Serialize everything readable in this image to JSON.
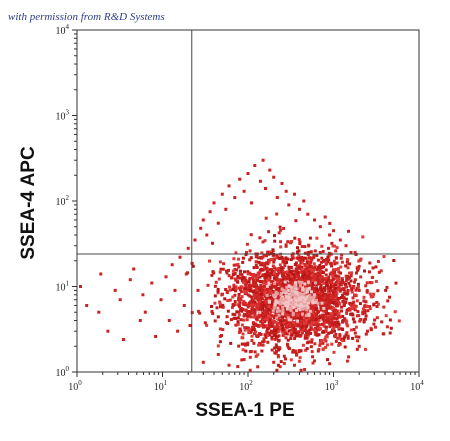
{
  "credit": "with permission from R&D Systems",
  "chart_data": {
    "type": "scatter",
    "title": "",
    "xlabel": "SSEA-1 PE",
    "ylabel": "SSEA-4 APC",
    "x_scale": "log",
    "y_scale": "log",
    "xlim": [
      1,
      10000
    ],
    "ylim": [
      1,
      10000
    ],
    "x_ticks": [
      {
        "base": "10",
        "exp": "0"
      },
      {
        "base": "10",
        "exp": "1"
      },
      {
        "base": "10",
        "exp": "2"
      },
      {
        "base": "10",
        "exp": "3"
      },
      {
        "base": "10",
        "exp": "4"
      }
    ],
    "y_ticks": [
      {
        "base": "10",
        "exp": "0"
      },
      {
        "base": "10",
        "exp": "1"
      },
      {
        "base": "10",
        "exp": "2"
      },
      {
        "base": "10",
        "exp": "3"
      },
      {
        "base": "10",
        "exp": "4"
      }
    ],
    "gates": {
      "x": 22,
      "y": 24
    },
    "grid": false,
    "colors": {
      "points": "#cc2222",
      "dense_core": "#e8a0a0",
      "axes": "#333333",
      "gates": "#444444"
    },
    "population": {
      "center_x": 350,
      "center_y": 7,
      "spread_x_decades": 0.35,
      "spread_y_decades": 0.28
    },
    "tail_points": [
      [
        1.1,
        10
      ],
      [
        1.3,
        6
      ],
      [
        1.8,
        5
      ],
      [
        1.9,
        14
      ],
      [
        2.3,
        3
      ],
      [
        2.8,
        9
      ],
      [
        3.2,
        7
      ],
      [
        3.5,
        2.4
      ],
      [
        4.2,
        12
      ],
      [
        4.6,
        16
      ],
      [
        5.5,
        4
      ],
      [
        5.9,
        8
      ],
      [
        6.3,
        5
      ],
      [
        7.5,
        11
      ],
      [
        8.3,
        2.6
      ],
      [
        9.6,
        7
      ],
      [
        11,
        13
      ],
      [
        12,
        4
      ],
      [
        13,
        18
      ],
      [
        14,
        9
      ],
      [
        15,
        3
      ],
      [
        16,
        22
      ],
      [
        18,
        6
      ],
      [
        19,
        14
      ],
      [
        20,
        28
      ],
      [
        21,
        3.5
      ],
      [
        24,
        35
      ],
      [
        26,
        9
      ],
      [
        28,
        48
      ],
      [
        30,
        60
      ],
      [
        33,
        40
      ],
      [
        36,
        75
      ],
      [
        40,
        95
      ],
      [
        45,
        55
      ],
      [
        50,
        120
      ],
      [
        55,
        80
      ],
      [
        60,
        150
      ],
      [
        70,
        110
      ],
      [
        80,
        180
      ],
      [
        90,
        130
      ],
      [
        100,
        210
      ],
      [
        110,
        95
      ],
      [
        120,
        260
      ],
      [
        140,
        170
      ],
      [
        150,
        300
      ],
      [
        160,
        140
      ],
      [
        180,
        230
      ],
      [
        200,
        190
      ],
      [
        220,
        110
      ],
      [
        250,
        160
      ],
      [
        280,
        130
      ],
      [
        300,
        90
      ],
      [
        350,
        120
      ],
      [
        400,
        80
      ],
      [
        450,
        100
      ],
      [
        500,
        70
      ],
      [
        600,
        60
      ],
      [
        700,
        50
      ],
      [
        800,
        65
      ],
      [
        900,
        40
      ],
      [
        1000,
        45
      ],
      [
        1200,
        35
      ],
      [
        1400,
        30
      ],
      [
        1600,
        25
      ],
      [
        1800,
        12
      ],
      [
        2000,
        9
      ],
      [
        2200,
        5
      ],
      [
        2500,
        3
      ],
      [
        30,
        1.3
      ],
      [
        45,
        1.6
      ],
      [
        60,
        1.2
      ],
      [
        90,
        1.4
      ],
      [
        130,
        1.15
      ],
      [
        200,
        1.3
      ],
      [
        350,
        1.2
      ],
      [
        600,
        1.35
      ],
      [
        900,
        1.25
      ],
      [
        1500,
        1.5
      ],
      [
        2000,
        2
      ]
    ]
  }
}
